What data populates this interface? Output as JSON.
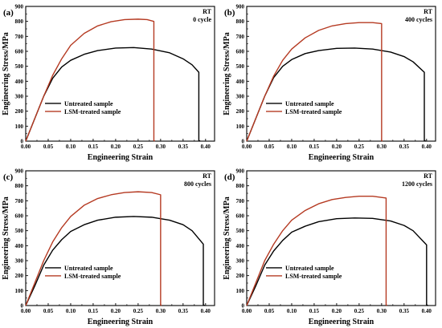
{
  "figure": {
    "colors": {
      "untreated": "#000000",
      "treated": "#b53a22",
      "axis": "#000000"
    }
  },
  "chart_data": [
    {
      "type": "line",
      "panel_label": "(a)",
      "condition": "RT",
      "cycles_label": "0 cycle",
      "xlabel": "Engineering Strain",
      "ylabel": "Engineering Stress/MPa",
      "xlim": [
        0,
        0.42
      ],
      "ylim": [
        0,
        900
      ],
      "xticks": [
        "0.00",
        "0.05",
        "0.10",
        "0.15",
        "0.20",
        "0.25",
        "0.30",
        "0.35",
        "0.40"
      ],
      "yticks": [
        "0",
        "100",
        "200",
        "300",
        "400",
        "500",
        "600",
        "700",
        "800",
        "900"
      ],
      "legend": "center-left",
      "series": [
        {
          "name": "Untreated sample",
          "color": "#000000",
          "x": [
            0,
            0.02,
            0.04,
            0.06,
            0.08,
            0.1,
            0.13,
            0.16,
            0.2,
            0.24,
            0.28,
            0.32,
            0.35,
            0.37,
            0.385,
            0.385,
            0.388
          ],
          "y": [
            0,
            150,
            300,
            420,
            495,
            540,
            580,
            605,
            622,
            625,
            615,
            590,
            550,
            510,
            460,
            5,
            0
          ]
        },
        {
          "name": "LSM-treated sample",
          "color": "#b53a22",
          "x": [
            0,
            0.02,
            0.04,
            0.06,
            0.08,
            0.1,
            0.13,
            0.16,
            0.19,
            0.22,
            0.25,
            0.27,
            0.285,
            0.285,
            0.287
          ],
          "y": [
            0,
            150,
            300,
            440,
            550,
            640,
            720,
            770,
            798,
            812,
            815,
            812,
            800,
            5,
            0
          ]
        }
      ]
    },
    {
      "type": "line",
      "panel_label": "(b)",
      "condition": "RT",
      "cycles_label": "400 cycles",
      "xlabel": "Engineering Strain",
      "ylabel": "Engineering Stress/MPa",
      "xlim": [
        0,
        0.42
      ],
      "ylim": [
        0,
        900
      ],
      "xticks": [
        "0.00",
        "0.05",
        "0.10",
        "0.15",
        "0.20",
        "0.25",
        "0.30",
        "0.35",
        "0.40"
      ],
      "yticks": [
        "0",
        "100",
        "200",
        "300",
        "400",
        "500",
        "600",
        "700",
        "800",
        "900"
      ],
      "legend": "center-left",
      "series": [
        {
          "name": "Untreated sample",
          "color": "#000000",
          "x": [
            0,
            0.02,
            0.04,
            0.06,
            0.08,
            0.1,
            0.13,
            0.16,
            0.2,
            0.24,
            0.28,
            0.32,
            0.35,
            0.37,
            0.395,
            0.395,
            0.398
          ],
          "y": [
            0,
            150,
            300,
            425,
            500,
            545,
            585,
            605,
            620,
            622,
            615,
            595,
            565,
            530,
            460,
            5,
            0
          ]
        },
        {
          "name": "LSM-treated sample",
          "color": "#b53a22",
          "x": [
            0,
            0.02,
            0.04,
            0.06,
            0.08,
            0.1,
            0.13,
            0.16,
            0.19,
            0.22,
            0.25,
            0.28,
            0.3,
            0.3,
            0.302
          ],
          "y": [
            0,
            150,
            300,
            435,
            540,
            615,
            690,
            740,
            770,
            785,
            792,
            792,
            785,
            5,
            0
          ]
        }
      ]
    },
    {
      "type": "line",
      "panel_label": "(c)",
      "condition": "RT",
      "cycles_label": "800 cycles",
      "xlabel": "Engineering Strain",
      "ylabel": "Engineering Stress/MPa",
      "xlim": [
        0,
        0.42
      ],
      "ylim": [
        0,
        900
      ],
      "xticks": [
        "0.00",
        "0.05",
        "0.10",
        "0.15",
        "0.20",
        "0.25",
        "0.30",
        "0.35",
        "0.40"
      ],
      "yticks": [
        "0",
        "100",
        "200",
        "300",
        "400",
        "500",
        "600",
        "700",
        "800",
        "900"
      ],
      "legend": "center-left",
      "series": [
        {
          "name": "Untreated sample",
          "color": "#000000",
          "x": [
            0,
            0.02,
            0.04,
            0.06,
            0.08,
            0.1,
            0.13,
            0.16,
            0.2,
            0.24,
            0.28,
            0.32,
            0.35,
            0.37,
            0.395,
            0.395,
            0.398
          ],
          "y": [
            0,
            130,
            270,
            370,
            440,
            495,
            540,
            570,
            590,
            595,
            590,
            570,
            540,
            500,
            410,
            5,
            0
          ]
        },
        {
          "name": "LSM-treated sample",
          "color": "#b53a22",
          "x": [
            0,
            0.02,
            0.04,
            0.06,
            0.08,
            0.1,
            0.13,
            0.16,
            0.19,
            0.22,
            0.25,
            0.28,
            0.3,
            0.3,
            0.302
          ],
          "y": [
            0,
            150,
            300,
            425,
            520,
            595,
            670,
            715,
            740,
            755,
            760,
            755,
            740,
            5,
            0
          ]
        }
      ]
    },
    {
      "type": "line",
      "panel_label": "(d)",
      "condition": "RT",
      "cycles_label": "1200 cycles",
      "xlabel": "Engineering Strain",
      "ylabel": "Engineering Stress/MPa",
      "xlim": [
        0,
        0.42
      ],
      "ylim": [
        0,
        900
      ],
      "xticks": [
        "0.00",
        "0.05",
        "0.10",
        "0.15",
        "0.20",
        "0.25",
        "0.30",
        "0.35",
        "0.40"
      ],
      "yticks": [
        "0",
        "100",
        "200",
        "300",
        "400",
        "500",
        "600",
        "700",
        "800",
        "900"
      ],
      "legend": "center-left",
      "series": [
        {
          "name": "Untreated sample",
          "color": "#000000",
          "x": [
            0,
            0.02,
            0.04,
            0.06,
            0.08,
            0.1,
            0.13,
            0.16,
            0.2,
            0.24,
            0.28,
            0.32,
            0.35,
            0.37,
            0.4,
            0.4,
            0.403
          ],
          "y": [
            0,
            130,
            270,
            365,
            435,
            490,
            530,
            560,
            580,
            585,
            582,
            565,
            535,
            500,
            405,
            5,
            0
          ]
        },
        {
          "name": "LSM-treated sample",
          "color": "#b53a22",
          "x": [
            0,
            0.02,
            0.04,
            0.06,
            0.08,
            0.1,
            0.13,
            0.16,
            0.19,
            0.22,
            0.25,
            0.28,
            0.31,
            0.31,
            0.312
          ],
          "y": [
            0,
            150,
            300,
            410,
            500,
            570,
            635,
            680,
            708,
            722,
            730,
            730,
            718,
            5,
            0
          ]
        }
      ]
    }
  ]
}
